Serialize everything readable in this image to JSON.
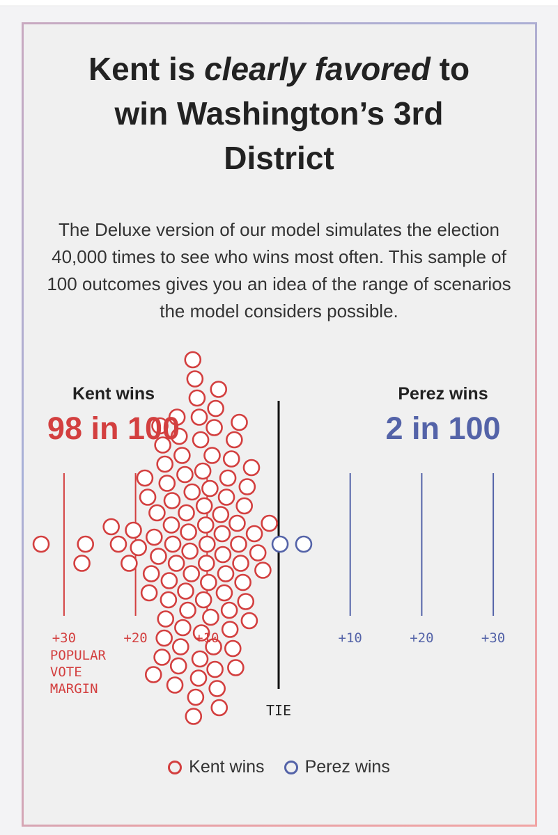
{
  "title": {
    "part1": "Kent is ",
    "emph": "clearly favored",
    "part2": " to",
    "line2": "win Washington’s 3rd",
    "line3": "District"
  },
  "description": "The Deluxe version of our model simulates the election 40,000 times to see who wins most often. This sample of 100 outcomes gives you an idea of the range of scenarios the model considers possible.",
  "legend": {
    "kent": "Kent wins",
    "perez": "Perez wins"
  },
  "colors": {
    "kent": "#d33f3f",
    "perez": "#5463a8",
    "tie": "#111111",
    "text": "#222222"
  },
  "chart_data": {
    "type": "scatter",
    "chart_subtype": "beeswarm",
    "title": "",
    "xlabel": "POPULAR VOTE MARGIN",
    "ylabel": "",
    "x_domain": [
      -33,
      33
    ],
    "x_unit": "popular vote margin (points); Kent margin to the left of TIE, Perez margin to the right",
    "tie_label": "TIE",
    "tick_labels_kent": [
      "+30",
      "+20",
      "+10"
    ],
    "tick_labels_perez": [
      "+10",
      "+20",
      "+30"
    ],
    "tick_values": [
      -30,
      -20,
      -10,
      10,
      20,
      30
    ],
    "grid": true,
    "legend_position": "bottom",
    "kent": {
      "name": "Kent wins",
      "heading": "Kent wins",
      "headline": "98 in 100",
      "count": 98
    },
    "perez": {
      "name": "Perez wins",
      "heading": "Perez wins",
      "headline": "2 in 100",
      "count": 2
    },
    "series": [
      {
        "name": "Kent wins",
        "values": [
          -33.2,
          -27.5,
          -27.0,
          -23.4,
          -22.4,
          -20.9,
          -20.3,
          -19.6,
          -18.7,
          -18.3,
          -18.1,
          -17.8,
          -17.5,
          -17.4,
          -17.0,
          -16.8,
          -16.6,
          -16.3,
          -16.2,
          -16.0,
          -15.9,
          -15.8,
          -15.6,
          -15.4,
          -15.3,
          -15.0,
          -14.9,
          -14.8,
          -14.5,
          -14.3,
          -14.2,
          -14.0,
          -13.9,
          -13.7,
          -13.5,
          -13.4,
          -13.1,
          -13.0,
          -12.9,
          -12.7,
          -12.6,
          -12.4,
          -12.2,
          -12.1,
          -12.0,
          -11.9,
          -11.7,
          -11.6,
          -11.4,
          -11.2,
          -11.1,
          -11.0,
          -10.9,
          -10.8,
          -10.6,
          -10.5,
          -10.4,
          -10.2,
          -10.1,
          -10.0,
          -9.8,
          -9.6,
          -9.5,
          -9.3,
          -9.1,
          -9.0,
          -8.9,
          -8.8,
          -8.6,
          -8.4,
          -8.3,
          -8.1,
          -7.9,
          -7.8,
          -7.6,
          -7.4,
          -7.3,
          -7.1,
          -6.9,
          -6.8,
          -6.6,
          -6.4,
          -6.2,
          -6.0,
          -5.8,
          -5.6,
          -5.5,
          -5.3,
          -5.0,
          -4.8,
          -4.6,
          -4.4,
          -4.1,
          -3.8,
          -3.4,
          -2.9,
          -2.2,
          -1.3
        ]
      },
      {
        "name": "Perez wins",
        "values": [
          0.2,
          3.5
        ]
      }
    ]
  }
}
